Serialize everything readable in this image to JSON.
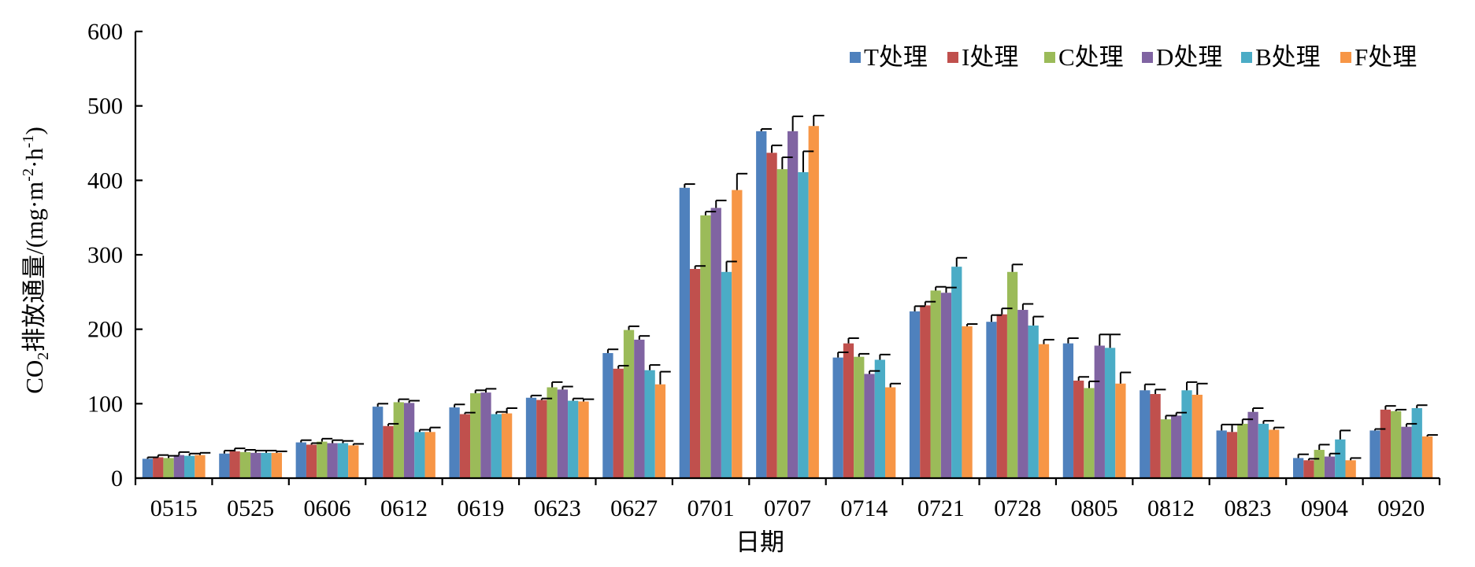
{
  "chart_data": {
    "type": "bar",
    "title": "",
    "xlabel": "日期",
    "ylabel_main": "CO",
    "ylabel_sub": "2",
    "ylabel_rest": "排放通量/(mg·m",
    "ylabel_sup1": "-2",
    "ylabel_mid": "·h",
    "ylabel_sup2": "-1",
    "ylabel_end": ")",
    "ylim": [
      0,
      600
    ],
    "yticks": [
      0,
      100,
      200,
      300,
      400,
      500,
      600
    ],
    "ytick_labels": [
      "0",
      "100",
      "200",
      "300",
      "400",
      "500",
      "600"
    ],
    "grid": false,
    "legend_position": "top-right",
    "categories": [
      "0515",
      "0525",
      "0606",
      "0612",
      "0619",
      "0623",
      "0627",
      "0701",
      "0707",
      "0714",
      "0721",
      "0728",
      "0805",
      "0812",
      "0823",
      "0904",
      "0920"
    ],
    "series": [
      {
        "name": "T处理",
        "color": "#4F81BD",
        "values": [
          26,
          33,
          48,
          96,
          95,
          108,
          168,
          390,
          466,
          162,
          224,
          210,
          181,
          118,
          64,
          27,
          64
        ],
        "errors": [
          2,
          4,
          3,
          4,
          4,
          3,
          5,
          5,
          3,
          7,
          7,
          9,
          7,
          8,
          8,
          5,
          2
        ]
      },
      {
        "name": "I处理",
        "color": "#C0504D",
        "values": [
          28,
          36,
          45,
          70,
          86,
          105,
          147,
          281,
          437,
          181,
          232,
          220,
          131,
          113,
          62,
          24,
          92
        ],
        "errors": [
          3,
          4,
          2,
          3,
          2,
          2,
          4,
          4,
          10,
          7,
          5,
          8,
          5,
          6,
          10,
          2,
          5
        ]
      },
      {
        "name": "C处理",
        "color": "#9BBB59",
        "values": [
          27,
          35,
          49,
          102,
          114,
          122,
          199,
          353,
          415,
          163,
          252,
          277,
          121,
          79,
          73,
          38,
          90
        ],
        "errors": [
          3,
          3,
          4,
          4,
          4,
          7,
          5,
          5,
          16,
          4,
          5,
          10,
          9,
          5,
          6,
          7,
          2
        ]
      },
      {
        "name": "D处理",
        "color": "#8064A2",
        "values": [
          31,
          34,
          47,
          101,
          115,
          119,
          186,
          363,
          466,
          140,
          249,
          226,
          178,
          84,
          89,
          29,
          69
        ],
        "errors": [
          4,
          3,
          4,
          3,
          5,
          4,
          5,
          10,
          20,
          4,
          7,
          8,
          15,
          4,
          5,
          4,
          4
        ]
      },
      {
        "name": "B处理",
        "color": "#4BACC6",
        "values": [
          30,
          34,
          47,
          62,
          86,
          104,
          145,
          277,
          411,
          159,
          284,
          205,
          175,
          118,
          73,
          52,
          94
        ],
        "errors": [
          3,
          3,
          3,
          3,
          3,
          3,
          7,
          14,
          28,
          7,
          12,
          12,
          18,
          11,
          4,
          12,
          4
        ]
      },
      {
        "name": "F处理",
        "color": "#F79646",
        "values": [
          31,
          34,
          44,
          62,
          87,
          103,
          126,
          387,
          473,
          122,
          204,
          180,
          127,
          112,
          65,
          24,
          56
        ],
        "errors": [
          3,
          2,
          2,
          6,
          7,
          3,
          17,
          22,
          14,
          5,
          3,
          6,
          15,
          15,
          3,
          3,
          2
        ]
      }
    ]
  }
}
